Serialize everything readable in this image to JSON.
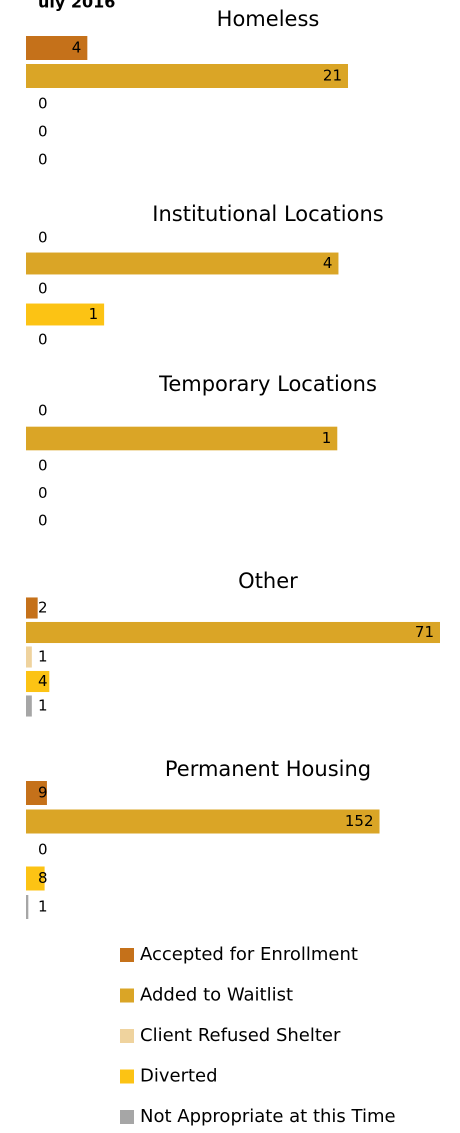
{
  "header": {
    "title": "uly 2016"
  },
  "chart_data": [
    {
      "type": "bar",
      "orientation": "horizontal",
      "title": "Homeless",
      "values": [
        4,
        21,
        0,
        0,
        0
      ],
      "xlim": [
        0,
        27
      ]
    },
    {
      "type": "bar",
      "orientation": "horizontal",
      "title": "Institutional Locations",
      "values": [
        0,
        4,
        0,
        1,
        0
      ],
      "xlim": [
        0,
        5.3
      ]
    },
    {
      "type": "bar",
      "orientation": "horizontal",
      "title": "Temporary Locations",
      "values": [
        0,
        1,
        0,
        0,
        0
      ],
      "xlim": [
        0,
        1.33
      ]
    },
    {
      "type": "bar",
      "orientation": "horizontal",
      "title": "Other",
      "values": [
        2,
        71,
        1,
        4,
        1
      ],
      "xlim": [
        0,
        71
      ]
    },
    {
      "type": "bar",
      "orientation": "horizontal",
      "title": "Permanent Housing",
      "values": [
        9,
        152,
        0,
        8,
        1
      ],
      "xlim": [
        0,
        178
      ]
    }
  ],
  "legend": {
    "position": "bottom",
    "entries": [
      {
        "name": "Accepted for Enrollment",
        "color": "#c5711a"
      },
      {
        "name": "Added to Waitlist",
        "color": "#daa526"
      },
      {
        "name": "Client Refused Shelter",
        "color": "#efd39e"
      },
      {
        "name": "Diverted",
        "color": "#fcc314"
      },
      {
        "name": "Not Appropriate at this Time",
        "color": "#a6a6a6"
      }
    ]
  }
}
